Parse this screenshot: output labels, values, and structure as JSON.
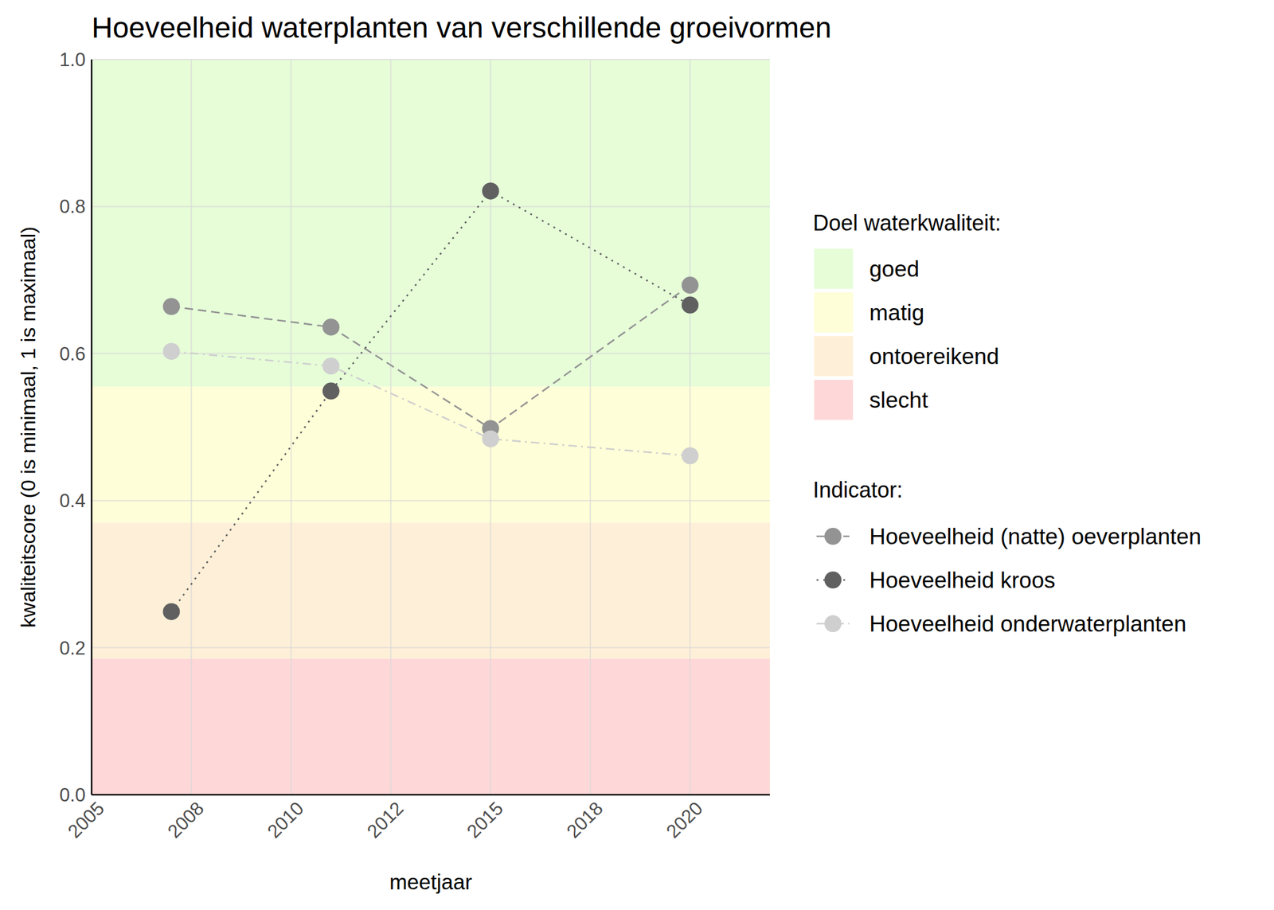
{
  "chart_data": {
    "type": "line",
    "title": "Hoeveelheid waterplanten van verschillende groeivormen",
    "x_label": "meetjaar",
    "y_label": "kwaliteitscore (0 is minimaal, 1 is maximaal)",
    "x": [
      2007,
      2011,
      2015,
      2020
    ],
    "xlim": [
      2005,
      2022
    ],
    "xticks": [
      2005,
      {
        "value": 2007.5,
        "label": "2008"
      },
      2010,
      {
        "value": 2012.5,
        "label": "2012"
      },
      2015,
      {
        "value": 2017.5,
        "label": "2018"
      },
      2020
    ],
    "ylim": [
      0,
      1
    ],
    "yticks": [
      {
        "value": 0,
        "label": "0.0"
      },
      0.2,
      0.4,
      0.6,
      0.8,
      {
        "value": 1,
        "label": "1.0"
      }
    ],
    "grid": true,
    "legend": "right",
    "bands_title": "Doel waterkwaliteit:",
    "bands": [
      {
        "name": "goed",
        "from": 0.555,
        "to": 1,
        "color": "#e6fdd8"
      },
      {
        "name": "matig",
        "from": 0.37,
        "to": 0.555,
        "color": "#fefed8"
      },
      {
        "name": "ontoereikend",
        "from": 0.185,
        "to": 0.37,
        "color": "#fef0d8"
      },
      {
        "name": "slecht",
        "from": 0,
        "to": 0.185,
        "color": "#fed8d8"
      }
    ],
    "legend_title": "Indicator:",
    "series": [
      {
        "name": "Hoeveelheid (natte) oeverplanten",
        "color": "#939393",
        "line_style": "dashed",
        "marker": "circle",
        "values": [
          0.664,
          0.636,
          0.498,
          0.693
        ]
      },
      {
        "name": "Hoeveelheid kroos",
        "color": "#606060",
        "line_style": "dotted",
        "marker": "circle",
        "values": [
          0.249,
          0.549,
          0.821,
          0.666
        ]
      },
      {
        "name": "Hoeveelheid onderwaterplanten",
        "color": "#cfcfcf",
        "line_style": "dotdash",
        "marker": "circle",
        "values": [
          0.603,
          0.583,
          0.484,
          0.461
        ]
      }
    ]
  }
}
